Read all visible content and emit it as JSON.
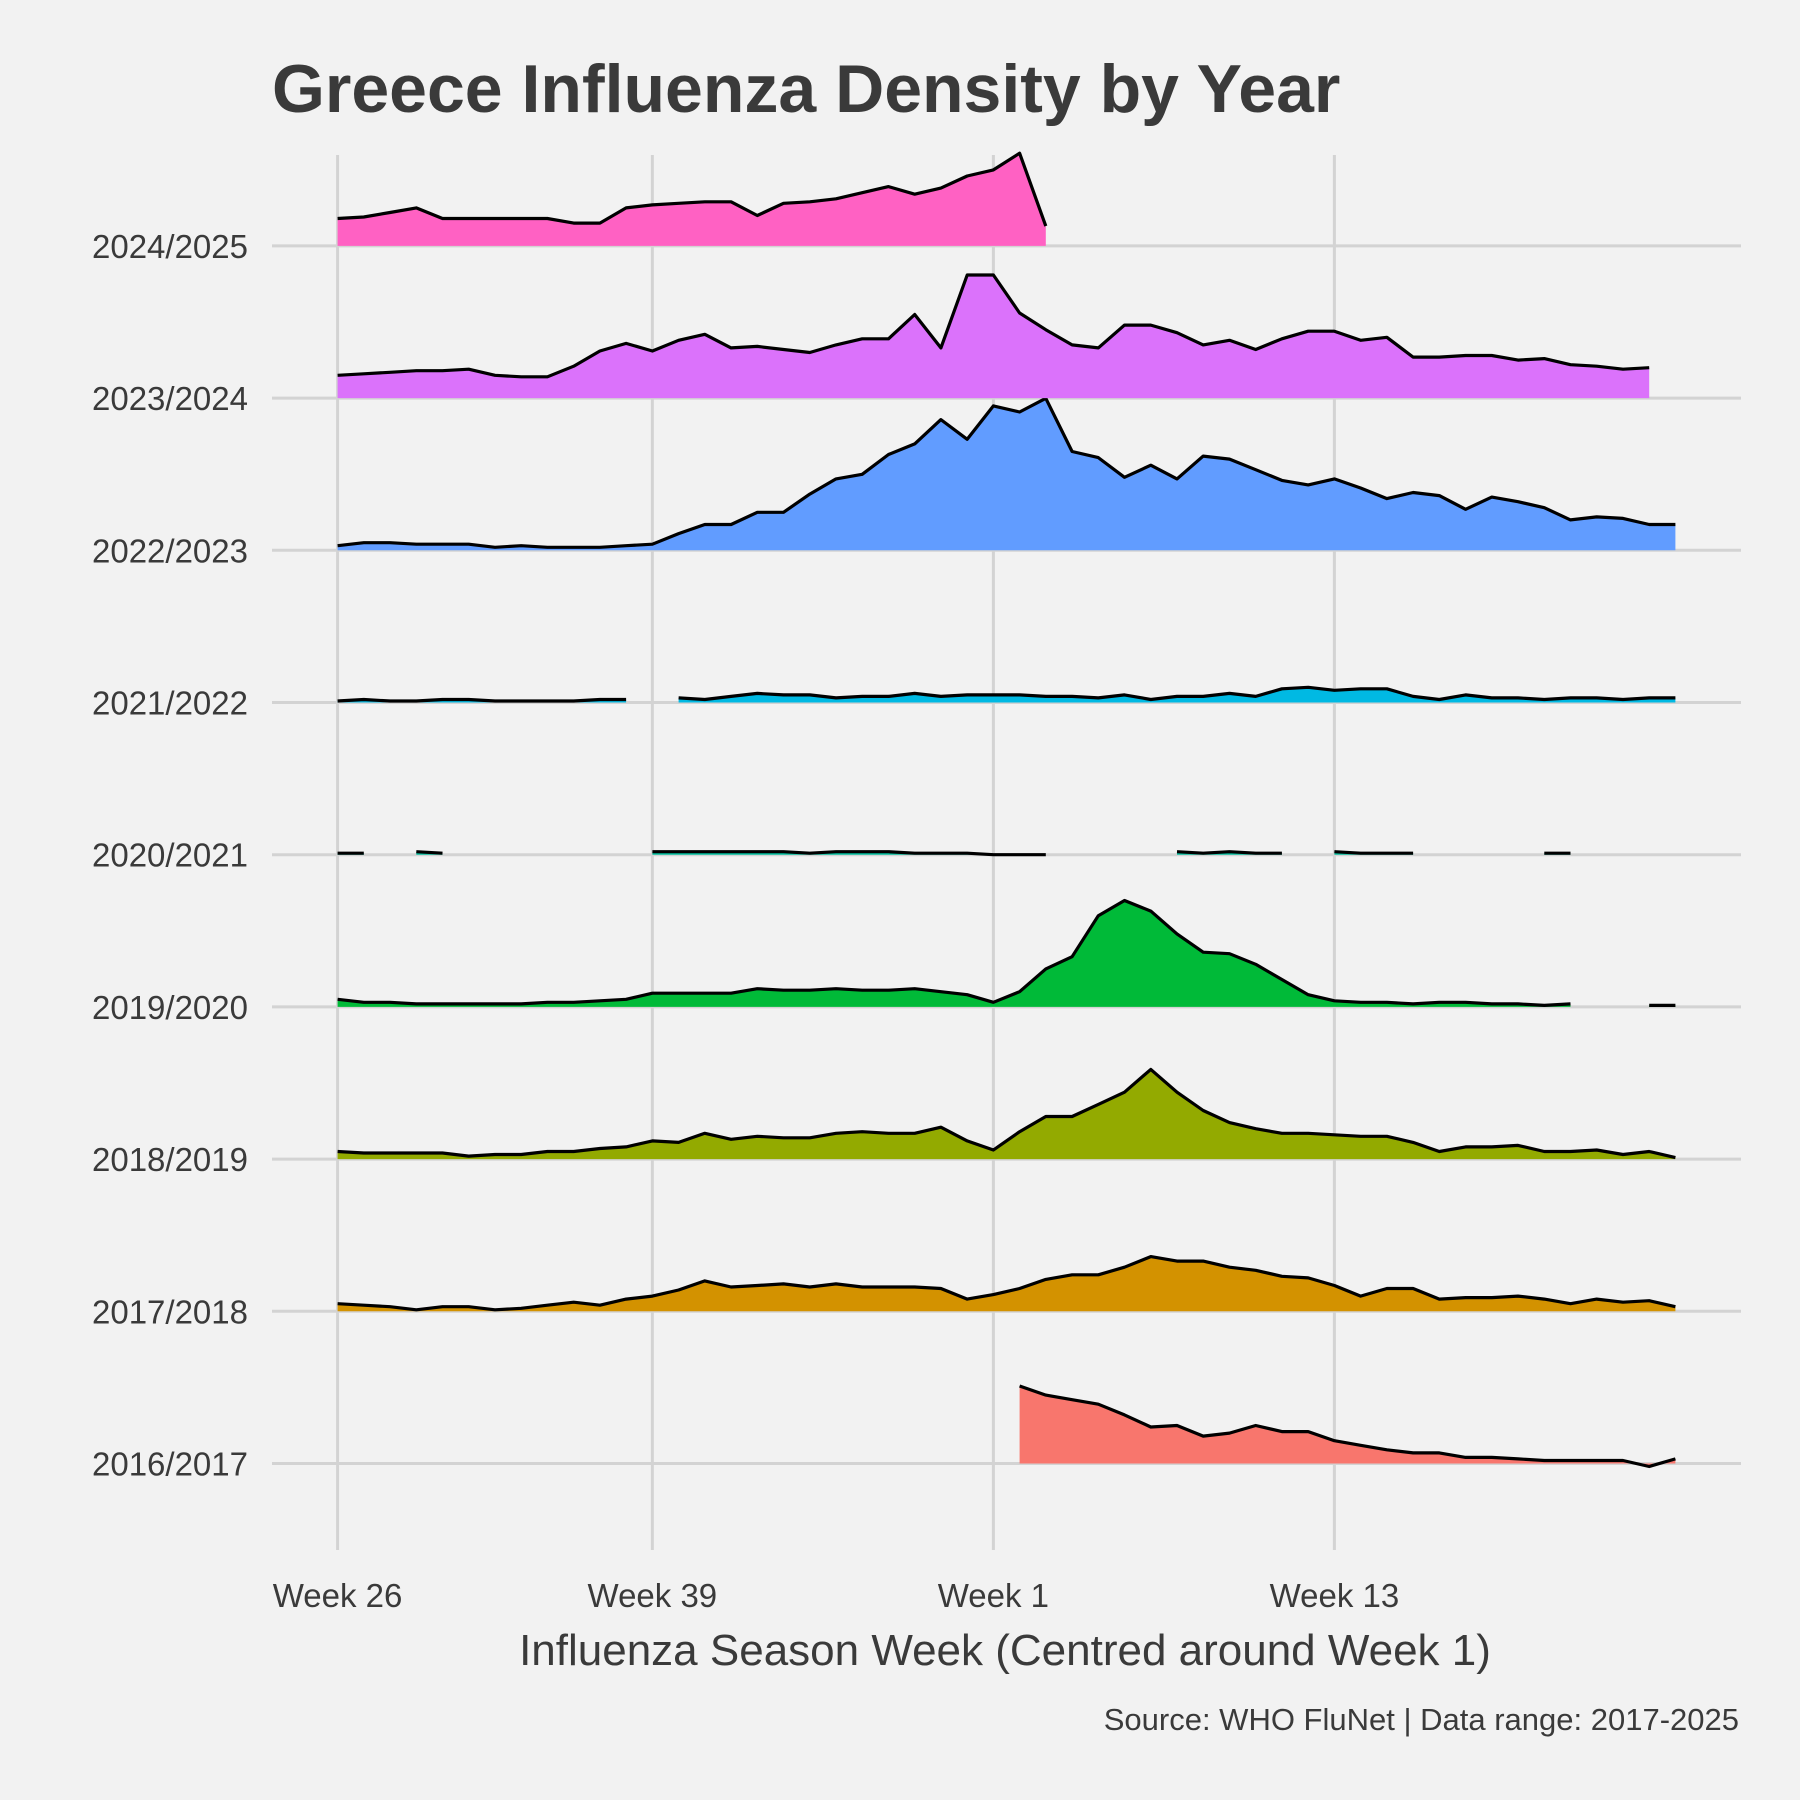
{
  "chart_data": {
    "type": "area",
    "title": "Greece Influenza Density by Year",
    "xlabel": "Influenza Season Week (Centred around Week 1)",
    "ylabel": "",
    "caption": "Source: WHO FluNet | Data range: 2017-2025",
    "x_ticks": [
      {
        "index": 0,
        "label": "Week 26"
      },
      {
        "index": 12,
        "label": "Week 39"
      },
      {
        "index": 25,
        "label": "Week 1"
      },
      {
        "index": 38,
        "label": "Week 13"
      }
    ],
    "x_range": [
      -2.5,
      53.5
    ],
    "legend": "none",
    "grid": true,
    "value_scale": "relative density (ridge heights)",
    "series": [
      {
        "name": "2016/2017",
        "color": "#f8766d",
        "start": 26,
        "values": [
          0.51,
          0.45,
          0.42,
          0.39,
          0.32,
          0.24,
          0.25,
          0.18,
          0.2,
          0.25,
          0.21,
          0.21,
          0.15,
          0.12,
          0.09,
          0.07,
          0.07,
          0.04,
          0.04,
          0.03,
          0.02,
          0.02,
          0.02,
          0.02,
          -0.02,
          0.03
        ]
      },
      {
        "name": "2017/2018",
        "color": "#d39200",
        "start": 0,
        "values": [
          0.05,
          0.04,
          0.03,
          0.01,
          0.03,
          0.03,
          0.01,
          0.02,
          0.04,
          0.06,
          0.04,
          0.08,
          0.1,
          0.14,
          0.2,
          0.16,
          0.17,
          0.18,
          0.16,
          0.18,
          0.16,
          0.16,
          0.16,
          0.15,
          0.08,
          0.11,
          0.15,
          0.21,
          0.24,
          0.24,
          0.29,
          0.36,
          0.33,
          0.33,
          0.29,
          0.27,
          0.23,
          0.22,
          0.17,
          0.1,
          0.15,
          0.15,
          0.08,
          0.09,
          0.09,
          0.1,
          0.08,
          0.05,
          0.08,
          0.06,
          0.07,
          0.03
        ]
      },
      {
        "name": "2018/2019",
        "color": "#93aa00",
        "start": 0,
        "values": [
          0.05,
          0.04,
          0.04,
          0.04,
          0.04,
          0.02,
          0.03,
          0.03,
          0.05,
          0.05,
          0.07,
          0.08,
          0.12,
          0.11,
          0.17,
          0.13,
          0.15,
          0.14,
          0.14,
          0.17,
          0.18,
          0.17,
          0.17,
          0.21,
          0.12,
          0.06,
          0.18,
          0.28,
          0.28,
          0.36,
          0.44,
          0.59,
          0.44,
          0.32,
          0.24,
          0.2,
          0.17,
          0.17,
          0.16,
          0.15,
          0.15,
          0.11,
          0.05,
          0.08,
          0.08,
          0.09,
          0.05,
          0.05,
          0.06,
          0.03,
          0.05,
          0.01
        ]
      },
      {
        "name": "2019/2020",
        "color": "#00ba38",
        "start": 0,
        "values": [
          0.05,
          0.03,
          0.03,
          0.02,
          0.02,
          0.02,
          0.02,
          0.02,
          0.03,
          0.03,
          0.04,
          0.05,
          0.09,
          0.09,
          0.09,
          0.09,
          0.12,
          0.11,
          0.11,
          0.12,
          0.11,
          0.11,
          0.12,
          0.1,
          0.08,
          0.03,
          0.1,
          0.25,
          0.33,
          0.6,
          0.7,
          0.63,
          0.48,
          0.36,
          0.35,
          0.28,
          0.18,
          0.08,
          0.04,
          0.03,
          0.03,
          0.02,
          0.03,
          0.03,
          0.02,
          0.02,
          0.01,
          0.02,
          null,
          null,
          0.01,
          0.01,
          0.01
        ],
        "segments": [
          [
            0,
            47
          ],
          [
            49,
            51
          ]
        ]
      },
      {
        "name": "2020/2021",
        "color": "#00c19f",
        "start": 0,
        "values": [
          0.01,
          0.01,
          null,
          0.02,
          0.01,
          null,
          null,
          null,
          null,
          null,
          null,
          null,
          0.02,
          0.02,
          0.02,
          0.02,
          0.02,
          0.02,
          0.01,
          0.02,
          0.02,
          0.02,
          0.01,
          0.01,
          0.01,
          0,
          0,
          0,
          null,
          null,
          null,
          null,
          0.02,
          0.01,
          0.02,
          0.01,
          0.01,
          null,
          0.02,
          0.01,
          0.01,
          0.01,
          null,
          null,
          null,
          null,
          0.01,
          0.01
        ],
        "segments": [
          [
            0,
            1
          ],
          [
            3,
            4
          ],
          [
            12,
            27
          ],
          [
            32,
            36
          ],
          [
            38,
            41
          ],
          [
            46,
            47
          ]
        ]
      },
      {
        "name": "2021/2022",
        "color": "#00b9e3",
        "start": 0,
        "values": [
          0.01,
          0.02,
          0.01,
          0.01,
          0.02,
          0.02,
          0.01,
          0.01,
          0.01,
          0.01,
          0.02,
          0.02,
          null,
          0.03,
          0.02,
          0.04,
          0.06,
          0.05,
          0.05,
          0.03,
          0.04,
          0.04,
          0.06,
          0.04,
          0.05,
          0.05,
          0.05,
          0.04,
          0.04,
          0.03,
          0.05,
          0.02,
          0.04,
          0.04,
          0.06,
          0.04,
          0.09,
          0.1,
          0.08,
          0.09,
          0.09,
          0.04,
          0.02,
          0.05,
          0.03,
          0.03,
          0.02,
          0.03,
          0.03,
          0.02,
          0.03,
          0.03,
          0.03
        ],
        "segments": [
          [
            0,
            11
          ],
          [
            13,
            51
          ]
        ]
      },
      {
        "name": "2022/2023",
        "color": "#619cff",
        "start": 0,
        "values": [
          0.03,
          0.05,
          0.05,
          0.04,
          0.04,
          0.04,
          0.02,
          0.03,
          0.02,
          0.02,
          0.02,
          0.03,
          0.04,
          0.11,
          0.17,
          0.17,
          0.25,
          0.25,
          0.37,
          0.47,
          0.5,
          0.63,
          0.7,
          0.86,
          0.73,
          0.95,
          0.91,
          1.0,
          0.65,
          0.61,
          0.48,
          0.56,
          0.47,
          0.62,
          0.6,
          0.53,
          0.46,
          0.43,
          0.47,
          0.41,
          0.34,
          0.38,
          0.36,
          0.27,
          0.35,
          0.32,
          0.28,
          0.2,
          0.22,
          0.21,
          0.17,
          0.17
        ]
      },
      {
        "name": "2023/2024",
        "color": "#db72fb",
        "start": 0,
        "values": [
          0.15,
          0.16,
          0.17,
          0.18,
          0.18,
          0.19,
          0.15,
          0.14,
          0.14,
          0.21,
          0.31,
          0.36,
          0.31,
          0.38,
          0.42,
          0.33,
          0.34,
          0.32,
          0.3,
          0.35,
          0.39,
          0.39,
          0.55,
          0.33,
          0.81,
          0.81,
          0.56,
          0.45,
          0.35,
          0.33,
          0.48,
          0.48,
          0.43,
          0.35,
          0.38,
          0.32,
          0.39,
          0.44,
          0.44,
          0.38,
          0.4,
          0.27,
          0.27,
          0.28,
          0.28,
          0.25,
          0.26,
          0.22,
          0.21,
          0.19,
          0.2
        ]
      },
      {
        "name": "2024/2025",
        "color": "#ff61c3",
        "start": 0,
        "values": [
          0.18,
          0.19,
          0.22,
          0.25,
          0.18,
          0.18,
          0.18,
          0.18,
          0.18,
          0.15,
          0.15,
          0.25,
          0.27,
          0.28,
          0.29,
          0.29,
          0.2,
          0.28,
          0.29,
          0.31,
          0.35,
          0.39,
          0.34,
          0.38,
          0.46,
          0.5,
          0.61,
          0.13
        ]
      }
    ]
  }
}
